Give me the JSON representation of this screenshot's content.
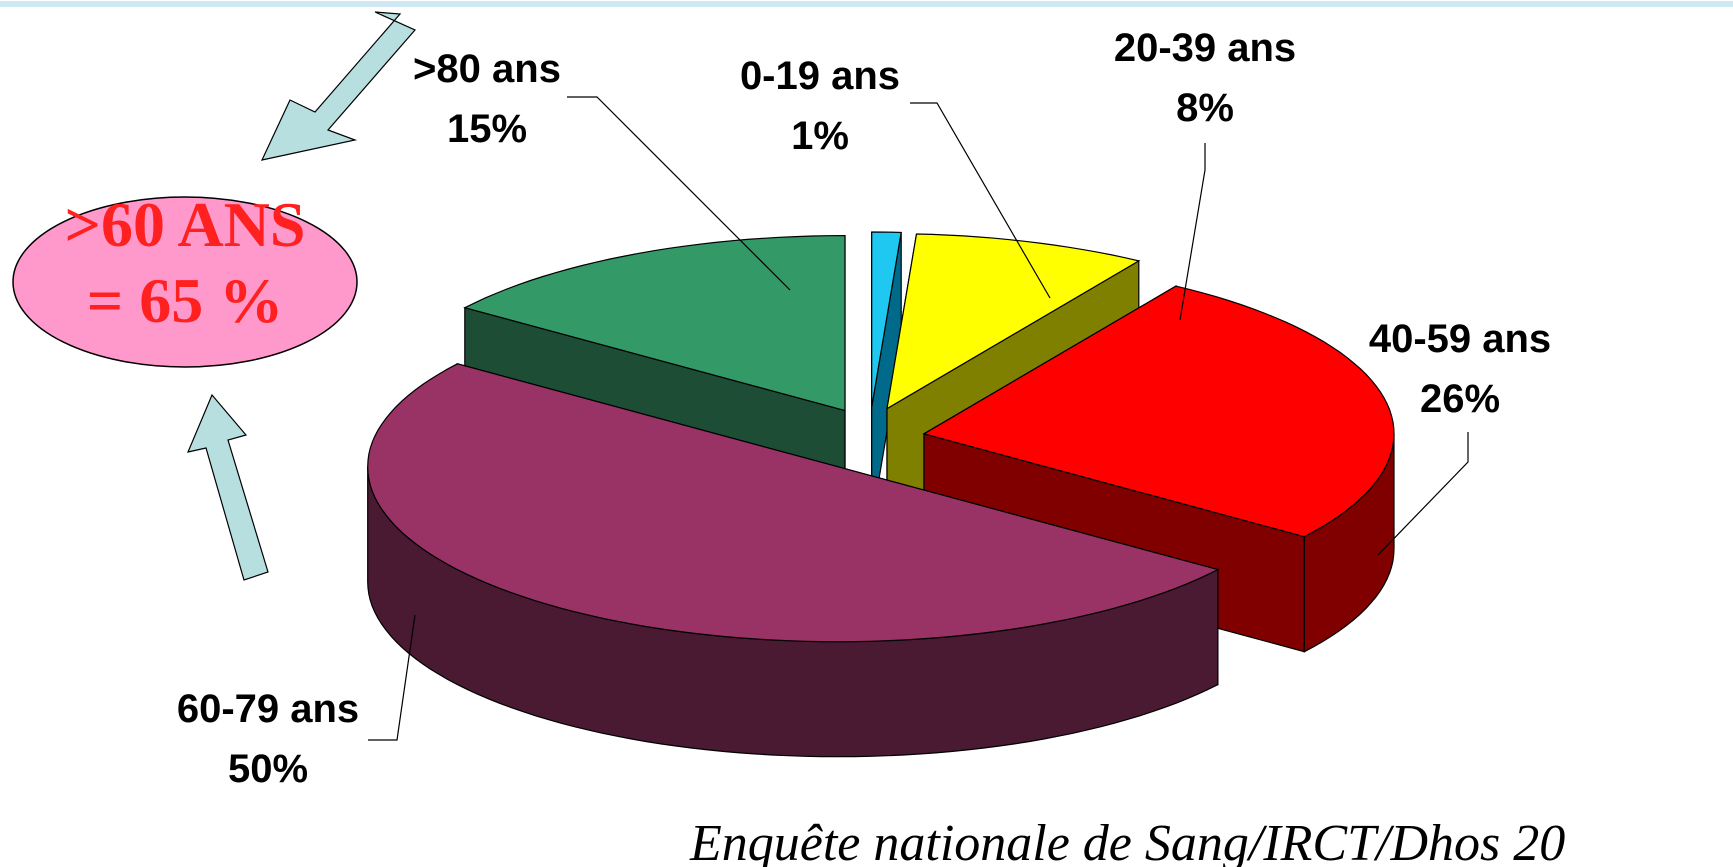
{
  "chart_data": {
    "type": "pie3d",
    "categories": [
      "0-19 ans",
      "20-39 ans",
      "40-59 ans",
      "60-79 ans",
      ">80 ans"
    ],
    "values": [
      1,
      8,
      26,
      50,
      15
    ],
    "value_labels": [
      "1%",
      "8%",
      "26%",
      "50%",
      "15%"
    ],
    "colors": [
      "#1ec8f0",
      "#ffff00",
      "#ff0000",
      "#993366",
      "#339966"
    ],
    "side_colors": [
      "#006a8a",
      "#808000",
      "#800000",
      "#4a1a33",
      "#1e4d35"
    ],
    "annotation": [
      ">60 ANS",
      "= 65 %"
    ],
    "source": "Enquête nationale de Sang/IRCT/Dhos 20"
  }
}
